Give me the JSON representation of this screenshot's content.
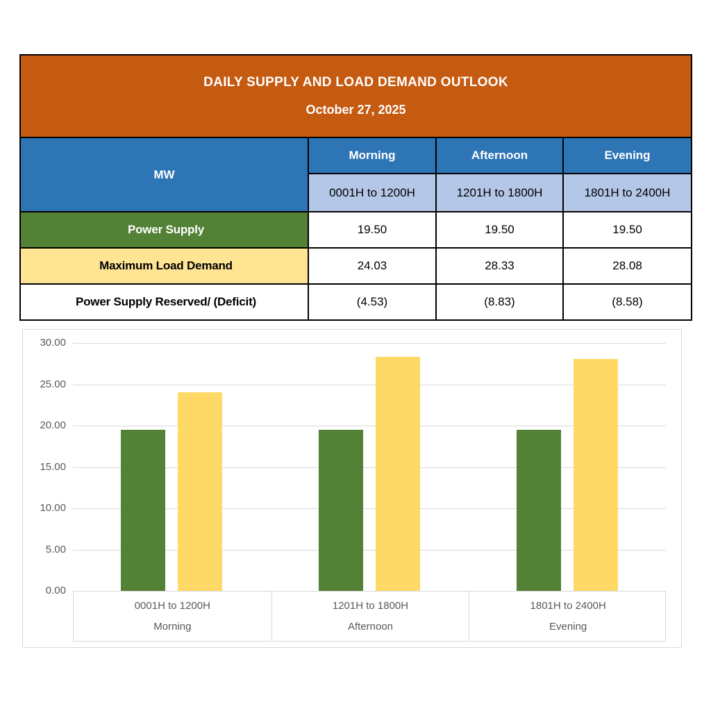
{
  "banner": {
    "title": "DAILY SUPPLY AND LOAD DEMAND OUTLOOK",
    "date": "October 27, 2025"
  },
  "table": {
    "unit_label": "MW",
    "periods": [
      {
        "name": "Morning",
        "range": "0001H to 1200H"
      },
      {
        "name": "Afternoon",
        "range": "1201H to 1800H"
      },
      {
        "name": "Evening",
        "range": "1801H to 2400H"
      }
    ],
    "rows": [
      {
        "label": "Power Supply",
        "values": [
          "19.50",
          "19.50",
          "19.50"
        ]
      },
      {
        "label": "Maximum Load Demand",
        "values": [
          "24.03",
          "28.33",
          "28.08"
        ]
      },
      {
        "label": "Power Supply Reserved/ (Deficit)",
        "values": [
          "(4.53)",
          "(8.83)",
          "(8.58)"
        ]
      }
    ]
  },
  "colors": {
    "banner_bg": "#C55A11",
    "header_blue": "#2E75B6",
    "subheader_blue": "#B4C7E7",
    "supply_green": "#538135",
    "demand_yellow": "#FFE494",
    "bar_green": "#538135",
    "bar_yellow": "#FFD966",
    "grid_gray": "#D9D9D9",
    "axis_text_gray": "#595959",
    "border_black": "#000000",
    "header_text": "#FFFFFF"
  },
  "chart_data": {
    "type": "bar",
    "title": "",
    "xlabel": "",
    "ylabel": "",
    "categories": [
      "0001H to 1200H",
      "1201H to 1800H",
      "1801H to 2400H"
    ],
    "category_sublabels": [
      "Morning",
      "Afternoon",
      "Evening"
    ],
    "series": [
      {
        "name": "Power Supply",
        "color": "#538135",
        "values": [
          19.5,
          19.5,
          19.5
        ]
      },
      {
        "name": "Maximum Load Demand",
        "color": "#FFD966",
        "values": [
          24.03,
          28.33,
          28.08
        ]
      }
    ],
    "ylim": [
      0,
      30
    ],
    "ytick_step": 5,
    "yticks": [
      "30.00",
      "25.00",
      "20.00",
      "15.00",
      "10.00",
      "5.00",
      "0.00"
    ],
    "grid": true,
    "legend_position": "none"
  }
}
